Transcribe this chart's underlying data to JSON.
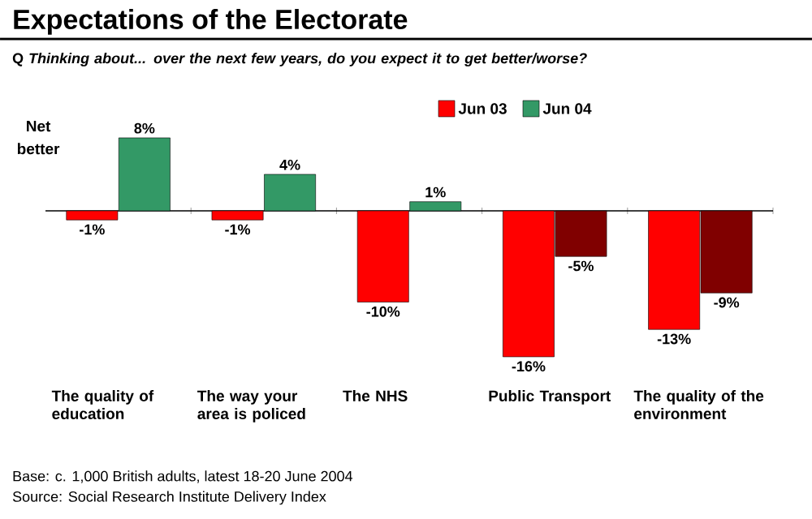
{
  "chart_data": {
    "type": "bar",
    "title": "Expectations of the Electorate",
    "subtitle": "Q   *Thinking about... over the next few years, do you expect it to get better/worse?*",
    "ylabel": "Net better",
    "categories": [
      "The quality of education",
      "The way your area is policed",
      "The NHS",
      "Public Transport",
      "The quality of the environment"
    ],
    "series": [
      {
        "name": "Jun 03",
        "color": "#ff0000",
        "colors": [
          "#ff0000",
          "#ff0000",
          "#ff0000",
          "#ff0000",
          "#ff0000"
        ],
        "values": [
          -1,
          -1,
          -10,
          -16,
          -13
        ],
        "value_labels": [
          "-1%",
          "-1%",
          "-10%",
          "-16%",
          "-13%"
        ]
      },
      {
        "name": "Jun 04",
        "color": "#339966",
        "colors": [
          "#339966",
          "#339966",
          "#339966",
          "#800000",
          "#800000"
        ],
        "values": [
          8,
          4,
          1,
          -5,
          -9
        ],
        "value_labels": [
          "8%",
          "4%",
          "1%",
          "-5%",
          "-9%"
        ]
      }
    ],
    "tick_labels": "x",
    "legend": "top right",
    "annotations": [
      "Base:   c. 1,000 British adults, latest 18-20 June 2004",
      "Source: Social Research Institute Delivery Index"
    ]
  }
}
